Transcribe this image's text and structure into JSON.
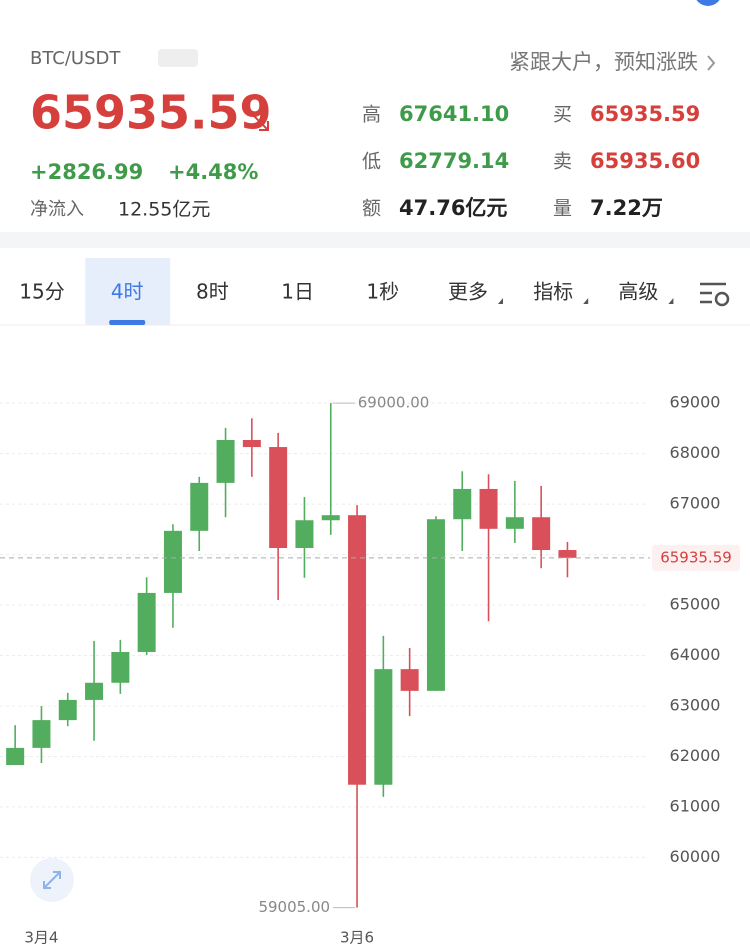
{
  "header": {
    "pair": "BTC/USDT",
    "price": "65935.59",
    "change": "+2826.99",
    "change_pct": "+4.48%",
    "net_inflow_label": "净流入",
    "net_inflow": "12.55亿元",
    "promo": "紧跟大户，预知涨跌",
    "stats": [
      {
        "label": "高",
        "value": "67641.10",
        "color": "#3f9b4a"
      },
      {
        "label": "买",
        "value": "65935.59",
        "color": "#d5403d"
      },
      {
        "label": "低",
        "value": "62779.14",
        "color": "#3f9b4a"
      },
      {
        "label": "卖",
        "value": "65935.60",
        "color": "#d5403d"
      },
      {
        "label": "额",
        "value": "47.76亿元",
        "color": "#222222"
      },
      {
        "label": "量",
        "value": "7.22万",
        "color": "#222222"
      }
    ]
  },
  "tabs": {
    "items": [
      "15分",
      "4时",
      "8时",
      "1日",
      "1秒",
      "更多",
      "指标",
      "高级"
    ],
    "selected": 1
  },
  "chart_data": {
    "type": "candlestick",
    "categories": [
      null,
      "3月4",
      null,
      null,
      null,
      null,
      null,
      null,
      null,
      null,
      null,
      null,
      null,
      "3月6",
      null,
      null,
      null,
      null,
      null,
      null,
      null,
      null
    ],
    "open": [
      61830,
      62170,
      62720,
      63120,
      63460,
      64070,
      65240,
      66470,
      67420,
      68270,
      68130,
      66130,
      66680,
      66780,
      61440,
      63730,
      63300,
      66700,
      67300,
      66510,
      66740,
      66090
    ],
    "high": [
      62620,
      63000,
      63260,
      64290,
      64310,
      65550,
      66600,
      67540,
      68510,
      68700,
      68410,
      67140,
      69000,
      66980,
      64390,
      64150,
      66760,
      67650,
      67590,
      67460,
      67360,
      66250
    ],
    "low": [
      61830,
      61870,
      62600,
      62310,
      63240,
      64010,
      64550,
      66070,
      66740,
      67540,
      65100,
      65540,
      66390,
      59005,
      61200,
      62800,
      63300,
      66070,
      64680,
      66230,
      65730,
      65550
    ],
    "close": [
      62170,
      62720,
      63120,
      63460,
      64070,
      65240,
      66470,
      67420,
      68270,
      68130,
      66130,
      66680,
      66780,
      61440,
      63730,
      63300,
      66700,
      67300,
      66510,
      66740,
      66090,
      65935.59
    ],
    "up_color": "#52ad5f",
    "down_color": "#d9505a",
    "ylim": [
      58760,
      70350
    ],
    "yticks": [
      60000,
      61000,
      62000,
      63000,
      64000,
      65000,
      66000,
      67000,
      68000,
      69000
    ],
    "grid": true,
    "last_price": 65935.59,
    "annotations": [
      {
        "value": 69000,
        "label": "69000.00"
      },
      {
        "value": 59005,
        "label": "59005.00"
      }
    ]
  }
}
